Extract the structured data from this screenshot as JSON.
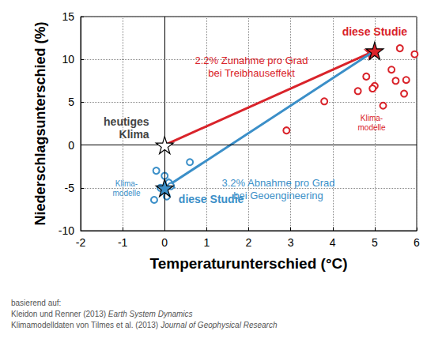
{
  "chart_data": {
    "type": "scatter",
    "xlabel": "Temperaturunterschied (°C)",
    "ylabel": "Niederschlagsunterschied (%)",
    "xlim": [
      -2,
      6
    ],
    "xticks": [
      -2,
      -1,
      0,
      1,
      2,
      3,
      4,
      5,
      6
    ],
    "ylim": [
      -10,
      15
    ],
    "yticks": [
      -10,
      -5,
      0,
      5,
      10,
      15
    ],
    "grid": true,
    "reference_lines": [
      {
        "axis": "x",
        "value": 0
      },
      {
        "axis": "y",
        "value": 0
      }
    ],
    "series": [
      {
        "name": "Klima-\nmodelle",
        "marker": "open_circle",
        "color": "#d9232a",
        "x": [
          2.9,
          3.8,
          4.6,
          4.8,
          5.0,
          4.95,
          5.2,
          5.4,
          5.5,
          5.75,
          5.7,
          5.6,
          5.95
        ],
        "y": [
          1.7,
          5.1,
          6.3,
          8.0,
          6.9,
          6.6,
          4.6,
          8.8,
          7.5,
          7.6,
          6.0,
          11.3,
          10.6
        ]
      },
      {
        "name": "Klima-\nmodelle",
        "marker": "open_circle",
        "color": "#3b8fc8",
        "x": [
          -0.2,
          0.0,
          0.6,
          0.1,
          0.05,
          -0.25,
          -0.1,
          0.15
        ],
        "y": [
          -3.0,
          -3.6,
          -2.0,
          -4.4,
          -6.0,
          -6.4,
          -5.0,
          -4.8
        ]
      },
      {
        "name": "heutiges\nKlima",
        "marker": "star",
        "color": "#ffffff",
        "x": [
          0
        ],
        "y": [
          0
        ]
      },
      {
        "name": "diese Studie",
        "marker": "star",
        "color": "#d9232a",
        "x": [
          5
        ],
        "y": [
          11
        ]
      },
      {
        "name": "diese Studie",
        "marker": "star",
        "color": "#3b8fc8",
        "x": [
          0
        ],
        "y": [
          -5
        ]
      }
    ],
    "arrows": [
      {
        "from": [
          0,
          0
        ],
        "to": [
          5,
          11
        ],
        "color": "#d9232a",
        "label": "2.2% Zunahme pro Grad\nbei Treibhauseffekt"
      },
      {
        "from": [
          5,
          11
        ],
        "to": [
          0,
          -5
        ],
        "color": "#3b8fc8",
        "label": "3.2% Abnahme pro Grad\nbei Geoengineering"
      }
    ],
    "footnote": [
      {
        "text": "basierend auf:"
      },
      {
        "text": "Kleidon und Renner (2013)",
        "source": "Earth System Dynamics"
      },
      {
        "text": "Klimamodelldaten von Tilmes et al. (2013)",
        "source": "Journal of Geophysical Research"
      }
    ]
  }
}
